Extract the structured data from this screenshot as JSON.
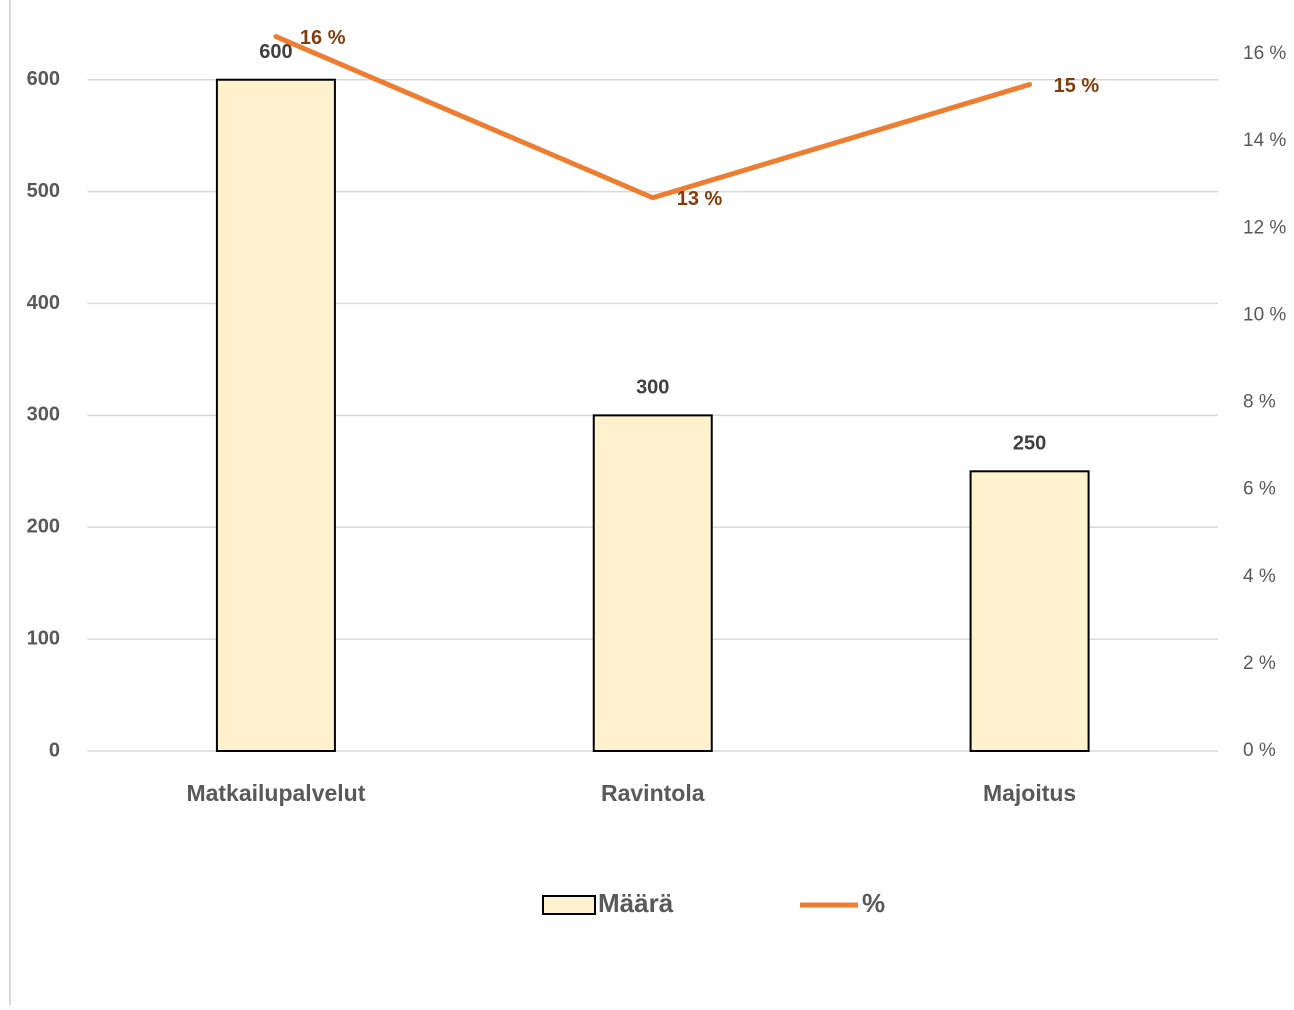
{
  "chart_data": {
    "type": "bar",
    "categories": [
      "Matkailupalvelut",
      "Ravintola",
      "Majoitus"
    ],
    "series": [
      {
        "name": "Määrä",
        "type": "bar",
        "color": "#fff2cc",
        "values": [
          600,
          300,
          250
        ]
      },
      {
        "name": "%",
        "type": "line",
        "axis": "y2",
        "color": "#ed7d31",
        "values": [
          16.4,
          12.7,
          15.3
        ],
        "value_labels": [
          "16 %",
          "13 %",
          "15 %"
        ]
      }
    ],
    "ylim": [
      0,
      623
    ],
    "yticks": [
      0,
      100,
      200,
      300,
      400,
      500,
      600
    ],
    "y2lim": [
      0,
      16
    ],
    "y2ticks": [
      {
        "value": 0,
        "label": "0 %"
      },
      {
        "value": 2,
        "label": "2 %"
      },
      {
        "value": 4,
        "label": "4 %"
      },
      {
        "value": 6,
        "label": "6 %"
      },
      {
        "value": 8,
        "label": "8 %"
      },
      {
        "value": 10,
        "label": "10 %"
      },
      {
        "value": 12,
        "label": "12 %"
      },
      {
        "value": 14,
        "label": "14 %"
      },
      {
        "value": 16,
        "label": "16 %"
      }
    ],
    "grid": true,
    "legend": "bottom"
  }
}
